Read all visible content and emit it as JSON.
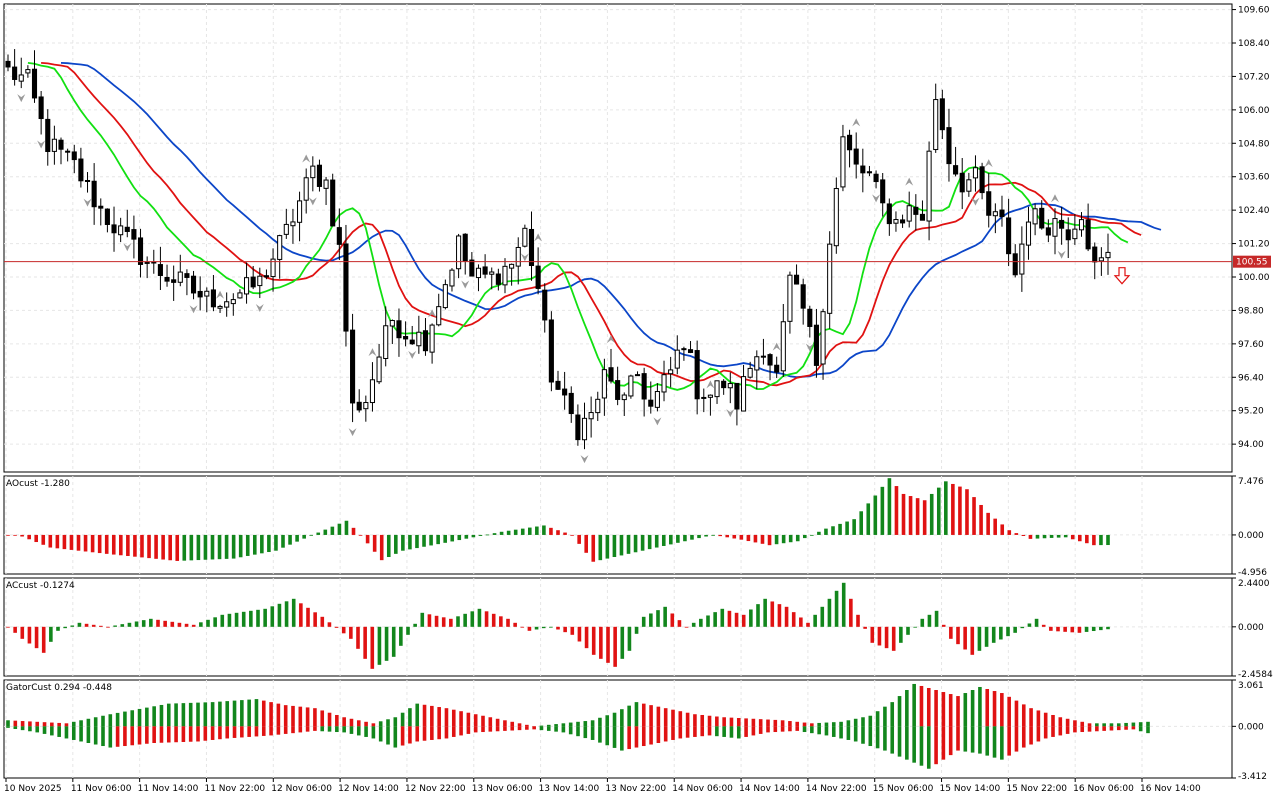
{
  "colors": {
    "background": "#ffffff",
    "grid": "#e6e6e6",
    "frame": "#000000",
    "candle_up_body": "#ffffff",
    "candle_down_body": "#000000",
    "candle_outline": "#000000",
    "jaw_blue": "#0c46c8",
    "teeth_red": "#e01212",
    "lips_green": "#12e012",
    "hist_up": "#12861c",
    "hist_down": "#e01212",
    "price_line": "#c62828",
    "price_label_bg": "#c62828",
    "fractal": "#9a9a9a",
    "signal_arrow": "#e01212"
  },
  "chart_data": [
    {
      "type": "candlestick",
      "title": "",
      "current_price_label": "100.55",
      "current_price": 100.55,
      "y_ticks": [
        "109.60",
        "108.40",
        "107.20",
        "106.00",
        "104.80",
        "103.60",
        "102.40",
        "101.20",
        "100.00",
        "98.80",
        "97.60",
        "96.40",
        "95.20",
        "94.00"
      ],
      "ylim": [
        93.0,
        109.8
      ],
      "x_ticks": [
        "10 Nov 2025",
        "11 Nov 06:00",
        "11 Nov 14:00",
        "11 Nov 22:00",
        "12 Nov 06:00",
        "12 Nov 14:00",
        "12 Nov 22:00",
        "13 Nov 06:00",
        "13 Nov 14:00",
        "13 Nov 22:00",
        "14 Nov 06:00",
        "14 Nov 14:00",
        "14 Nov 22:00",
        "15 Nov 06:00",
        "15 Nov 14:00",
        "15 Nov 22:00",
        "16 Nov 06:00",
        "16 Nov 14:00"
      ],
      "anchors": [
        [
          0,
          107.4
        ],
        [
          3,
          107.0
        ],
        [
          6,
          104.8
        ],
        [
          10,
          104.0
        ],
        [
          14,
          102.4
        ],
        [
          18,
          101.3
        ],
        [
          22,
          100.3
        ],
        [
          26,
          99.8
        ],
        [
          30,
          99.2
        ],
        [
          34,
          99.3
        ],
        [
          38,
          99.8
        ],
        [
          42,
          101.6
        ],
        [
          46,
          103.8
        ],
        [
          48,
          103.4
        ],
        [
          50,
          101.0
        ],
        [
          52,
          95.3
        ],
        [
          54,
          95.6
        ],
        [
          56,
          97.2
        ],
        [
          58,
          98.5
        ],
        [
          60,
          98.0
        ],
        [
          63,
          97.8
        ],
        [
          66,
          99.8
        ],
        [
          68,
          101.2
        ],
        [
          70,
          100.0
        ],
        [
          73,
          100.0
        ],
        [
          76,
          100.5
        ],
        [
          78,
          101.6
        ],
        [
          80,
          99.6
        ],
        [
          82,
          96.5
        ],
        [
          84,
          95.4
        ],
        [
          86,
          94.6
        ],
        [
          88,
          95.0
        ],
        [
          90,
          96.4
        ],
        [
          93,
          95.5
        ],
        [
          95,
          96.5
        ],
        [
          97,
          95.3
        ],
        [
          100,
          96.6
        ],
        [
          102,
          97.8
        ],
        [
          104,
          96.0
        ],
        [
          106,
          95.8
        ],
        [
          108,
          96.2
        ],
        [
          110,
          95.5
        ],
        [
          112,
          96.8
        ],
        [
          114,
          97.6
        ],
        [
          116,
          96.4
        ],
        [
          118,
          99.8
        ],
        [
          120,
          98.8
        ],
        [
          122,
          97.0
        ],
        [
          124,
          101.4
        ],
        [
          126,
          104.9
        ],
        [
          128,
          103.9
        ],
        [
          130,
          103.6
        ],
        [
          132,
          102.5
        ],
        [
          134,
          102.0
        ],
        [
          136,
          102.4
        ],
        [
          138,
          102.2
        ],
        [
          140,
          106.5
        ],
        [
          142,
          104.3
        ],
        [
          144,
          103.4
        ],
        [
          146,
          103.5
        ],
        [
          148,
          102.2
        ],
        [
          150,
          101.9
        ],
        [
          152,
          100.1
        ],
        [
          154,
          102.3
        ],
        [
          156,
          101.9
        ],
        [
          158,
          102.0
        ],
        [
          160,
          101.7
        ],
        [
          162,
          102.4
        ],
        [
          164,
          100.3
        ],
        [
          166,
          100.7
        ]
      ],
      "note": "",
      "fractals_up_idx": [
        44,
        61,
        74,
        87,
        108,
        124,
        144,
        157,
        174,
        184,
        201,
        214
      ],
      "fractals_down_idx": [
        3,
        7,
        16,
        25,
        38,
        52,
        63,
        70,
        83,
        93,
        106,
        118,
        133,
        148,
        164,
        177,
        198,
        216
      ],
      "sell_arrow_idx": 225,
      "indicators": [
        "Alligator jaw",
        "Alligator teeth",
        "Alligator lips"
      ]
    },
    {
      "type": "histogram",
      "label": "AOcust -1.280",
      "y_ticks": [
        "7.476",
        "0.000",
        "-4.956"
      ],
      "ylim": [
        -4.956,
        7.476
      ],
      "anchors": [
        [
          0,
          0.0
        ],
        [
          2,
          -0.2
        ],
        [
          6,
          -1.6
        ],
        [
          14,
          -2.4
        ],
        [
          24,
          -3.3
        ],
        [
          32,
          -3.0
        ],
        [
          38,
          -2.0
        ],
        [
          44,
          0.3
        ],
        [
          48,
          1.8
        ],
        [
          50,
          0.0
        ],
        [
          53,
          -3.2
        ],
        [
          56,
          -2.0
        ],
        [
          62,
          -1.0
        ],
        [
          70,
          0.4
        ],
        [
          76,
          1.2
        ],
        [
          80,
          0.0
        ],
        [
          83,
          -3.4
        ],
        [
          88,
          -2.4
        ],
        [
          94,
          -1.2
        ],
        [
          100,
          0.0
        ],
        [
          104,
          -0.6
        ],
        [
          108,
          -1.3
        ],
        [
          112,
          -0.8
        ],
        [
          116,
          0.8
        ],
        [
          120,
          2.0
        ],
        [
          123,
          5.0
        ],
        [
          125,
          7.2
        ],
        [
          127,
          5.2
        ],
        [
          130,
          4.4
        ],
        [
          133,
          6.8
        ],
        [
          136,
          5.8
        ],
        [
          139,
          2.8
        ],
        [
          142,
          0.6
        ],
        [
          145,
          -0.5
        ],
        [
          150,
          -0.3
        ],
        [
          154,
          -1.3
        ],
        [
          156,
          -1.28
        ]
      ],
      "x_count": 226
    },
    {
      "type": "histogram",
      "label": "ACcust -0.1274",
      "y_ticks": [
        "2.4400",
        "0.000",
        "-2.4584"
      ],
      "ylim": [
        -2.4584,
        2.44
      ],
      "anchors": [
        [
          0,
          0.0
        ],
        [
          2,
          -0.6
        ],
        [
          5,
          -1.3
        ],
        [
          7,
          -0.2
        ],
        [
          10,
          0.2
        ],
        [
          14,
          0.0
        ],
        [
          20,
          0.4
        ],
        [
          26,
          0.1
        ],
        [
          30,
          0.6
        ],
        [
          36,
          0.9
        ],
        [
          40,
          1.4
        ],
        [
          44,
          0.5
        ],
        [
          48,
          -0.6
        ],
        [
          51,
          -2.1
        ],
        [
          54,
          -1.5
        ],
        [
          58,
          0.7
        ],
        [
          62,
          0.4
        ],
        [
          66,
          0.9
        ],
        [
          70,
          0.4
        ],
        [
          73,
          -0.2
        ],
        [
          76,
          0.0
        ],
        [
          79,
          -0.4
        ],
        [
          82,
          -1.4
        ],
        [
          85,
          -2.0
        ],
        [
          87,
          -1.2
        ],
        [
          89,
          0.5
        ],
        [
          92,
          1.0
        ],
        [
          95,
          0.0
        ],
        [
          97,
          0.4
        ],
        [
          100,
          0.9
        ],
        [
          103,
          0.6
        ],
        [
          106,
          1.4
        ],
        [
          109,
          1.0
        ],
        [
          112,
          0.2
        ],
        [
          114,
          1.0
        ],
        [
          117,
          2.2
        ],
        [
          119,
          0.6
        ],
        [
          121,
          -0.8
        ],
        [
          124,
          -1.2
        ],
        [
          126,
          -0.4
        ],
        [
          128,
          0.4
        ],
        [
          130,
          0.8
        ],
        [
          132,
          -0.6
        ],
        [
          135,
          -1.4
        ],
        [
          138,
          -0.8
        ],
        [
          141,
          -0.3
        ],
        [
          144,
          0.4
        ],
        [
          146,
          -0.2
        ],
        [
          150,
          -0.3
        ],
        [
          154,
          -0.12
        ]
      ],
      "x_count": 226
    },
    {
      "type": "histogram",
      "label": "GatorCust 0.294 -0.448",
      "y_ticks": [
        "3.061",
        "0.000",
        "-3.412"
      ],
      "ylim": [
        -3.412,
        3.061
      ],
      "upper_anchors": [
        [
          0,
          0.4
        ],
        [
          4,
          0.3
        ],
        [
          8,
          0.2
        ],
        [
          14,
          0.8
        ],
        [
          22,
          1.5
        ],
        [
          28,
          1.6
        ],
        [
          34,
          1.8
        ],
        [
          38,
          1.4
        ],
        [
          42,
          1.2
        ],
        [
          46,
          0.6
        ],
        [
          50,
          0.2
        ],
        [
          53,
          0.6
        ],
        [
          56,
          1.5
        ],
        [
          60,
          1.2
        ],
        [
          64,
          0.8
        ],
        [
          68,
          0.4
        ],
        [
          72,
          0.0
        ],
        [
          76,
          0.2
        ],
        [
          80,
          0.4
        ],
        [
          83,
          0.9
        ],
        [
          86,
          1.6
        ],
        [
          90,
          1.2
        ],
        [
          94,
          0.8
        ],
        [
          98,
          0.6
        ],
        [
          102,
          0.5
        ],
        [
          106,
          0.4
        ],
        [
          110,
          0.2
        ],
        [
          114,
          0.3
        ],
        [
          118,
          0.7
        ],
        [
          121,
          1.6
        ],
        [
          124,
          2.8
        ],
        [
          127,
          2.4
        ],
        [
          130,
          2.0
        ],
        [
          133,
          2.6
        ],
        [
          136,
          2.2
        ],
        [
          140,
          1.2
        ],
        [
          144,
          0.6
        ],
        [
          148,
          0.2
        ],
        [
          152,
          0.2
        ],
        [
          156,
          0.3
        ]
      ],
      "lower_anchors": [
        [
          0,
          -0.1
        ],
        [
          4,
          -0.4
        ],
        [
          8,
          -0.8
        ],
        [
          14,
          -1.4
        ],
        [
          20,
          -1.1
        ],
        [
          26,
          -1.0
        ],
        [
          30,
          -0.8
        ],
        [
          36,
          -0.6
        ],
        [
          42,
          -0.3
        ],
        [
          46,
          -0.4
        ],
        [
          50,
          -0.8
        ],
        [
          53,
          -1.4
        ],
        [
          56,
          -1.0
        ],
        [
          60,
          -0.8
        ],
        [
          64,
          -0.4
        ],
        [
          68,
          -0.3
        ],
        [
          72,
          -0.2
        ],
        [
          76,
          -0.4
        ],
        [
          80,
          -0.9
        ],
        [
          84,
          -1.6
        ],
        [
          88,
          -1.2
        ],
        [
          92,
          -0.8
        ],
        [
          96,
          -0.6
        ],
        [
          100,
          -0.8
        ],
        [
          104,
          -0.4
        ],
        [
          108,
          -0.3
        ],
        [
          112,
          -0.6
        ],
        [
          116,
          -1.0
        ],
        [
          120,
          -1.6
        ],
        [
          124,
          -2.4
        ],
        [
          126,
          -2.8
        ],
        [
          128,
          -2.2
        ],
        [
          130,
          -1.6
        ],
        [
          133,
          -1.8
        ],
        [
          136,
          -2.2
        ],
        [
          139,
          -1.4
        ],
        [
          142,
          -0.8
        ],
        [
          146,
          -0.4
        ],
        [
          150,
          -0.3
        ],
        [
          154,
          -0.2
        ],
        [
          156,
          -0.45
        ]
      ],
      "x_count": 226
    }
  ]
}
